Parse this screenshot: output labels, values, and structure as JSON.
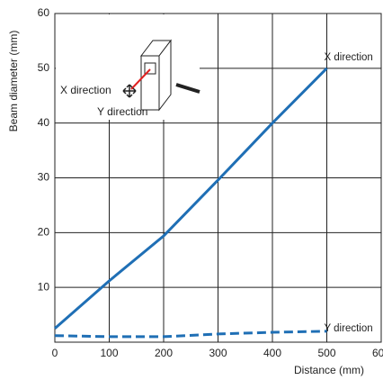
{
  "chart_data": {
    "type": "line",
    "x_label": "Distance (mm)",
    "y_label": "Beam diameter (mm)",
    "x": [
      0,
      100,
      200,
      300,
      400,
      500
    ],
    "series": [
      {
        "name": "X direction",
        "color": "#1f6fb5",
        "style": "solid",
        "values": [
          2.5,
          11.2,
          19.4,
          29.6,
          40,
          50
        ]
      },
      {
        "name": "Y direction",
        "color": "#1f6fb5",
        "style": "dashed",
        "values": [
          1.2,
          1,
          1,
          1.5,
          1.8,
          2
        ]
      }
    ],
    "xlim": [
      0,
      600
    ],
    "xticks": [
      0,
      100,
      200,
      300,
      400,
      500,
      600
    ],
    "ylim": [
      0,
      60
    ],
    "yticks": [
      10,
      20,
      30,
      40,
      50,
      60
    ],
    "grid": true,
    "annotations": [
      "X direction",
      "Y direction"
    ]
  }
}
